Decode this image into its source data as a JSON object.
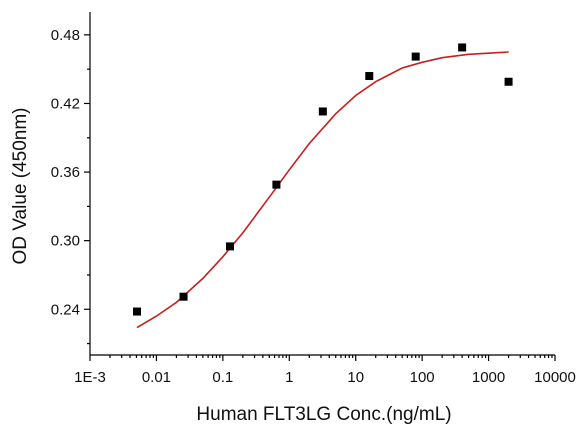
{
  "chart_data": {
    "type": "scatter",
    "title": "",
    "xlabel": "Human FLT3LG Conc.(ng/mL)",
    "ylabel": "OD Value (450nm)",
    "x_scale": "log",
    "xlim": [
      0.001,
      10000
    ],
    "ylim": [
      0.2,
      0.5
    ],
    "x_ticks": [
      {
        "value": 0.001,
        "label": "1E-3"
      },
      {
        "value": 0.01,
        "label": "0.01"
      },
      {
        "value": 0.1,
        "label": "0.1"
      },
      {
        "value": 1,
        "label": "1"
      },
      {
        "value": 10,
        "label": "10"
      },
      {
        "value": 100,
        "label": "100"
      },
      {
        "value": 1000,
        "label": "1000"
      },
      {
        "value": 10000,
        "label": "10000"
      }
    ],
    "y_ticks": [
      {
        "value": 0.24,
        "label": "0.24"
      },
      {
        "value": 0.3,
        "label": "0.30"
      },
      {
        "value": 0.36,
        "label": "0.36"
      },
      {
        "value": 0.42,
        "label": "0.42"
      },
      {
        "value": 0.48,
        "label": "0.48"
      }
    ],
    "grid": false,
    "legend": "none",
    "series": [
      {
        "type": "scatter",
        "marker": "square",
        "color": "#000000",
        "x": [
          0.0051,
          0.0256,
          0.128,
          0.64,
          3.2,
          16,
          80,
          400,
          2000
        ],
        "y": [
          0.238,
          0.251,
          0.295,
          0.349,
          0.413,
          0.444,
          0.461,
          0.469,
          0.439
        ]
      },
      {
        "type": "line",
        "color": "#c81e1e",
        "x": [
          0.0051,
          0.01,
          0.02,
          0.05,
          0.1,
          0.2,
          0.5,
          1,
          2,
          5,
          10,
          20,
          50,
          100,
          200,
          500,
          1000,
          2000
        ],
        "y": [
          0.224,
          0.234,
          0.246,
          0.267,
          0.286,
          0.307,
          0.338,
          0.362,
          0.385,
          0.411,
          0.427,
          0.439,
          0.451,
          0.456,
          0.46,
          0.463,
          0.464,
          0.465
        ]
      }
    ]
  }
}
